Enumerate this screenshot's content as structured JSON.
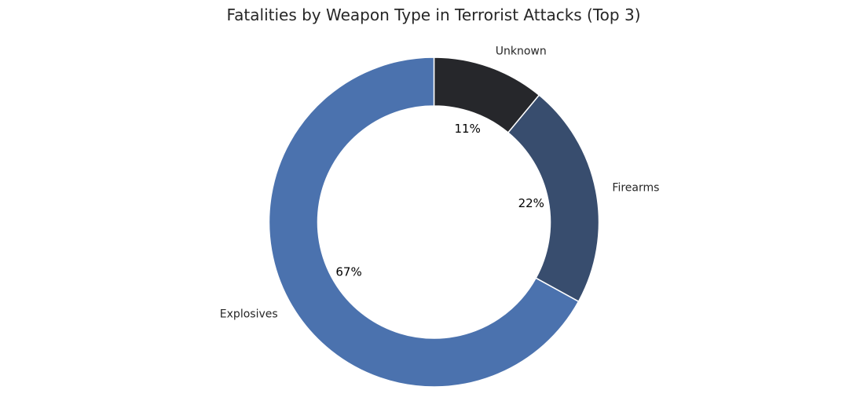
{
  "chart_data": {
    "type": "pie",
    "title": "Fatalities by Weapon Type in Terrorist Attacks (Top 3)",
    "donut": true,
    "start_angle": "top",
    "direction": "clockwise",
    "slices": [
      {
        "label": "Unknown",
        "value": 11,
        "pct_label": "11%",
        "color": "#26272b"
      },
      {
        "label": "Firearms",
        "value": 22,
        "pct_label": "22%",
        "color": "#384d6e"
      },
      {
        "label": "Explosives",
        "value": 67,
        "pct_label": "67%",
        "color": "#4b72ae"
      }
    ]
  }
}
